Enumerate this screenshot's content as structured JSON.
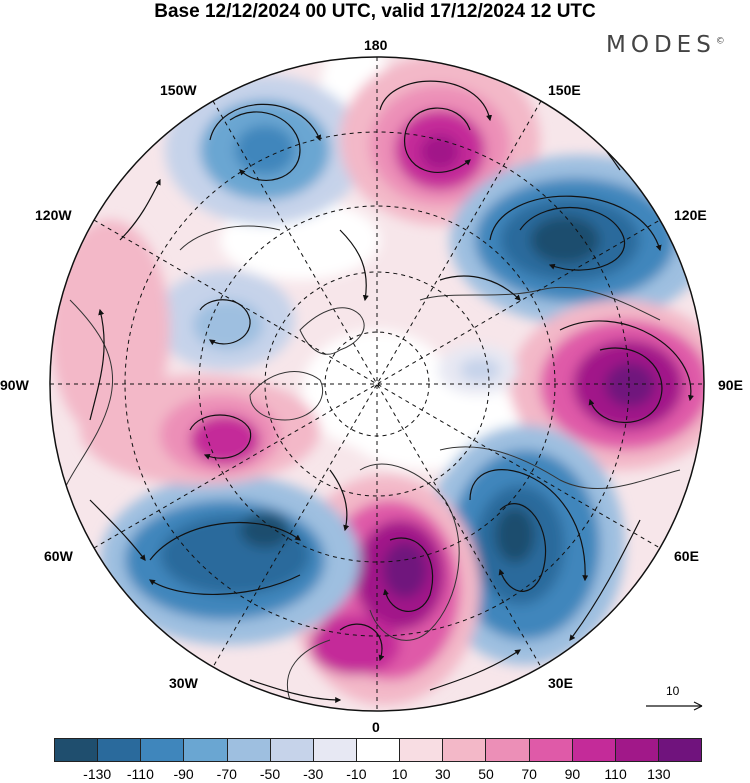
{
  "header": {
    "title": "Base 12/12/2024 00 UTC, valid 17/12/2024 12 UTC",
    "brand": "MODES",
    "brand_mark": "©"
  },
  "longitude_labels": {
    "top": "180",
    "top_right": "150E",
    "right_upper": "120E",
    "right": "90E",
    "right_lower": "60E",
    "bottom_right": "30E",
    "bottom": "0",
    "bottom_left": "30W",
    "left_lower": "60W",
    "left": "90W",
    "left_upper": "120W",
    "top_left": "150W"
  },
  "vector_reference": {
    "value": "10"
  },
  "colorbar": {
    "colors": [
      "#1f4e6e",
      "#2a6a9c",
      "#3f86bc",
      "#6aa6d2",
      "#9ebfe0",
      "#c6d3ea",
      "#e7e8f3",
      "#ffffff",
      "#f8dde3",
      "#f3b8c8",
      "#ec8fb7",
      "#df5aa8",
      "#c42b99",
      "#a11889",
      "#70137d"
    ],
    "tick_labels": [
      "-130",
      "-110",
      "-90",
      "-70",
      "-50",
      "-30",
      "-10",
      "10",
      "30",
      "50",
      "70",
      "90",
      "110",
      "130"
    ]
  },
  "map": {
    "projection": "north-polar-stereographic",
    "field_features": [
      {
        "name": "anomaly-low-150W",
        "sign": "negative",
        "level": -70
      },
      {
        "name": "anomaly-high-170E",
        "sign": "positive",
        "level": 110
      },
      {
        "name": "anomaly-low-120E",
        "sign": "negative",
        "level": -130
      },
      {
        "name": "anomaly-high-90E",
        "sign": "positive",
        "level": 130
      },
      {
        "name": "anomaly-low-90E-inner",
        "sign": "negative",
        "level": -30
      },
      {
        "name": "anomaly-low-50E",
        "sign": "negative",
        "level": -110
      },
      {
        "name": "anomaly-high-5E",
        "sign": "positive",
        "level": 130
      },
      {
        "name": "anomaly-low-50W",
        "sign": "negative",
        "level": -110
      },
      {
        "name": "anomaly-high-80W",
        "sign": "positive",
        "level": 90
      },
      {
        "name": "anomaly-low-120W",
        "sign": "negative",
        "level": -50
      }
    ]
  }
}
